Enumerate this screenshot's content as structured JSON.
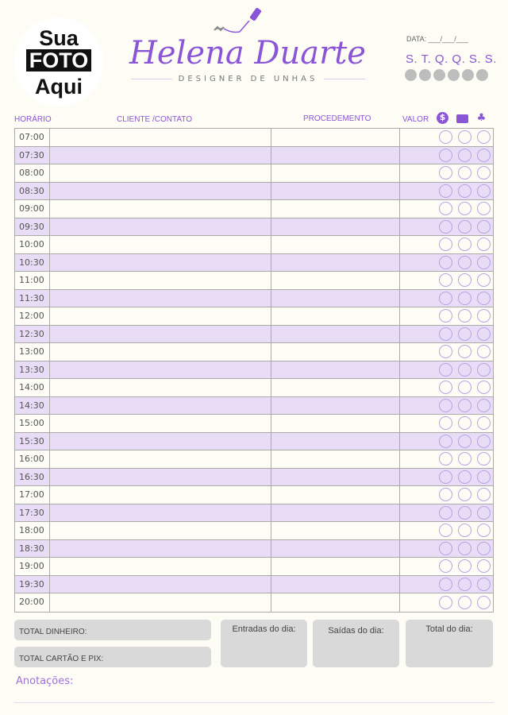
{
  "photo": {
    "line1": "Sua",
    "line2": "FOTO",
    "line3": "Aqui"
  },
  "brand": {
    "name": "Helena Duarte",
    "subtitle": "DESIGNER DE UNHAS"
  },
  "date_label": "DATA: ___/___/___",
  "weekdays": "S. T. Q. Q. S. S.",
  "columns": {
    "time": "HORÁRIO",
    "client": "CLIENTE /CONTATO",
    "procedure": "PROCEDEMENTO",
    "value": "VALOR"
  },
  "payment_icons": [
    "cash-icon",
    "card-icon",
    "pix-icon"
  ],
  "times": [
    "07:00",
    "07:30",
    "08:00",
    "08:30",
    "09:00",
    "09:30",
    "10:00",
    "10:30",
    "11:00",
    "11:30",
    "12:00",
    "12:30",
    "13:00",
    "13:30",
    "14:00",
    "14:30",
    "15:00",
    "15:30",
    "16:00",
    "16:30",
    "17:00",
    "17:30",
    "18:00",
    "18:30",
    "19:00",
    "19:30",
    "20:00"
  ],
  "totals": {
    "cash": "TOTAL DINHEIRO:",
    "card_pix": "TOTAL CARTÃO E PIX:",
    "income": "Entradas do dia:",
    "expenses": "Saídas do dia:",
    "total": "Total do dia:"
  },
  "notes_label": "Anotações:",
  "colors": {
    "accent": "#8a55d6",
    "row_alt": "#e8dcf7",
    "box": "#d9d9d9"
  }
}
